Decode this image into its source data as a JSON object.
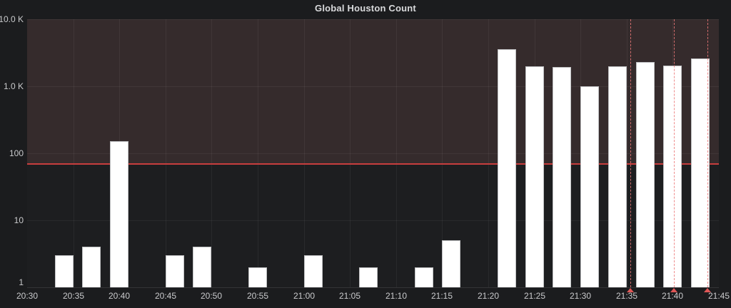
{
  "title": "Global Houston Count",
  "chart_data": {
    "type": "bar",
    "title": "Global Houston Count",
    "y_scale": "log",
    "y_range": [
      1,
      10000
    ],
    "y_ticks": [
      {
        "label": "1",
        "value": 1
      },
      {
        "label": "10",
        "value": 10
      },
      {
        "label": "100",
        "value": 100
      },
      {
        "label": "1.0 K",
        "value": 1000
      },
      {
        "label": "10.0 K",
        "value": 10000
      }
    ],
    "x_range_minutes": 75,
    "x_tick_interval_minutes": 5,
    "x_tick_labels": [
      "20:30",
      "20:35",
      "20:40",
      "20:45",
      "20:50",
      "20:55",
      "21:00",
      "21:05",
      "21:10",
      "21:15",
      "21:20",
      "21:25",
      "21:30",
      "21:35",
      "21:40",
      "21:45"
    ],
    "bar_width_minutes": 2,
    "series": [
      {
        "name": "Global Houston Count",
        "points": [
          {
            "time": "20:34",
            "minutes": 4,
            "value": 3
          },
          {
            "time": "20:37",
            "minutes": 7,
            "value": 4
          },
          {
            "time": "20:40",
            "minutes": 10,
            "value": 150
          },
          {
            "time": "20:46",
            "minutes": 16,
            "value": 3
          },
          {
            "time": "20:49",
            "minutes": 19,
            "value": 4
          },
          {
            "time": "20:55",
            "minutes": 25,
            "value": 2
          },
          {
            "time": "21:01",
            "minutes": 31,
            "value": 3
          },
          {
            "time": "21:07",
            "minutes": 37,
            "value": 2
          },
          {
            "time": "21:13",
            "minutes": 43,
            "value": 2
          },
          {
            "time": "21:16",
            "minutes": 46,
            "value": 5
          },
          {
            "time": "21:22",
            "minutes": 52,
            "value": 3600
          },
          {
            "time": "21:25",
            "minutes": 55,
            "value": 2000
          },
          {
            "time": "21:28",
            "minutes": 58,
            "value": 1950
          },
          {
            "time": "21:31",
            "minutes": 61,
            "value": 1000
          },
          {
            "time": "21:34",
            "minutes": 64,
            "value": 1980
          },
          {
            "time": "21:37",
            "minutes": 67,
            "value": 2300
          },
          {
            "time": "21:40",
            "minutes": 70,
            "value": 2050
          },
          {
            "time": "21:43",
            "minutes": 73,
            "value": 2600
          }
        ]
      }
    ],
    "threshold": {
      "value": 70,
      "fill_above": true
    },
    "annotations": [
      {
        "minutes": 65.4
      },
      {
        "minutes": 70.1
      },
      {
        "minutes": 73.8
      }
    ],
    "colors": {
      "page_bg": "#1b1c1e",
      "plot_bg": "#1d1e20",
      "threshold_region": "#352b2c",
      "threshold_line": "#c83e3e",
      "bar_fill": "#ffffff",
      "bar_border": "#bfc0c2",
      "annotation": "#e06a6a",
      "text": "#c9cacc",
      "title_text": "#d9dadc"
    },
    "legend": "none",
    "grid": true
  }
}
